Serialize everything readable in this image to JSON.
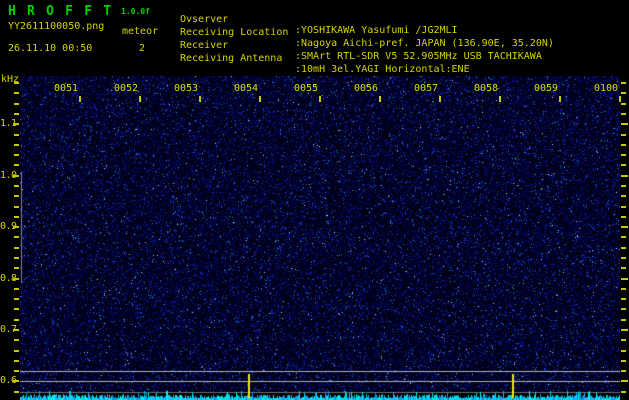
{
  "header": {
    "title": "H R O F F T",
    "version": "1.0.0f",
    "filename": "YY2611100050.png",
    "mode": "meteor",
    "datetime": "26.11.10 00:50",
    "meteor_count": "2",
    "info": [
      {
        "label": "Ovserver",
        "value": ":YOSHIKAWA Yasufumi /JG2MLI"
      },
      {
        "label": "Receiving Location",
        "value": ":Nagoya Aichi-pref. JAPAN (136.90E, 35.20N)"
      },
      {
        "label": "Receiver",
        "value": ":SMArt RTL-SDR V5 52.905MHz USB TACHIKAWA"
      },
      {
        "label": "Receiving Antenna",
        "value": ":10mH 3el.YAGI Horizontal:ENE"
      }
    ]
  },
  "chart_data": {
    "type": "heatmap",
    "title": "HROFFT radio meteor echo spectrogram",
    "x_axis": {
      "start_time": "0050",
      "end_time": "0100",
      "tick_labels": [
        "0051",
        "0052",
        "0053",
        "0054",
        "0055",
        "0056",
        "0057",
        "0058",
        "0059",
        "0100"
      ],
      "minutes_per_division": 1
    },
    "y_axis": {
      "unit": "kHz",
      "tick_labels": [
        "1.1",
        "1.0",
        "0.9",
        "0.8",
        "0.7",
        "0.6"
      ],
      "major_values": [
        1.1,
        1.0,
        0.9,
        0.8,
        0.7,
        0.6
      ],
      "minor_step_khz": 0.02,
      "top_khz": 1.18,
      "bottom_khz": 0.58
    },
    "reference_lines_khz": [
      0.62,
      0.6
    ],
    "dim_reference_line_khz": 0.58,
    "meteor_markers_minutes_after_start": [
      3.8,
      8.2
    ],
    "meteor_count": 2,
    "signal_description": "uniform blue background noise, no strong echoes; cyan noise-level bar strip along bottom edge"
  },
  "colors": {
    "title_green": "#00d200",
    "text_yellow": "#d4d400",
    "axis_yellow": "#c8c800",
    "reference_line_gray": "#b2b2b6",
    "dim_line_gray": "#6e6e72",
    "meteor_marker_yellow": "#e8e800",
    "strip_cyan": "#00e0e0",
    "noise_blue": "#0000aa",
    "background": "#000000"
  }
}
